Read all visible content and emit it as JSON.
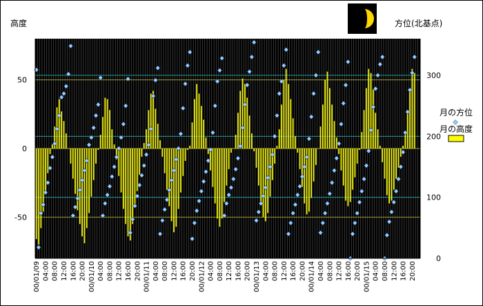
{
  "chart_data": {
    "type": "bar+scatter",
    "y_left_label": "高度",
    "y_right_label": "方位(北基点)",
    "y_left_range": [
      -80,
      80
    ],
    "y_left_ticks": [
      50,
      0,
      -50
    ],
    "y_right_range": [
      0,
      360
    ],
    "y_right_ticks": [
      300,
      200,
      100,
      0
    ],
    "x_tick_labels": [
      "00/01/09",
      "04:00",
      "08:00",
      "12:00",
      "16:00",
      "20:00",
      "00/01/10",
      "04:00",
      "08:00",
      "12:00",
      "16:00",
      "20:00",
      "00/01/11",
      "04:00",
      "08:00",
      "12:00",
      "16:00",
      "20:00",
      "00/01/12",
      "04:00",
      "08:00",
      "12:00",
      "16:00",
      "20:00",
      "00/01/13",
      "04:00",
      "08:00",
      "12:00",
      "16:00",
      "20:00",
      "00/01/14",
      "04:00",
      "08:00",
      "12:00",
      "16:00",
      "20:00",
      "00/01/15",
      "04:00",
      "08:00",
      "12:00",
      "16:00",
      "20:00"
    ],
    "points_per_hour": 1,
    "hours": 168,
    "legend": [
      {
        "name": "月の方位",
        "marker": "diamond",
        "color": "#99ccff"
      },
      {
        "name": "月の高度",
        "marker": "bar",
        "color": "#ffff00"
      }
    ],
    "series": [
      {
        "name": "月の高度",
        "axis": "left",
        "values": [
          -66,
          -70,
          -58,
          -46,
          -32,
          -18,
          -4,
          3,
          16,
          30,
          36,
          27,
          20,
          11,
          0,
          -11,
          -22,
          -33,
          -45,
          -55,
          -64,
          -69,
          -58,
          -47,
          -35,
          -23,
          -11,
          -1,
          10,
          23,
          37,
          36,
          28,
          14,
          3,
          -8,
          -20,
          -32,
          -44,
          -55,
          -64,
          -67,
          -55,
          -43,
          -31,
          -19,
          -6,
          4,
          14,
          28,
          40,
          42,
          29,
          18,
          6,
          -6,
          -18,
          -30,
          -42,
          -53,
          -61,
          -57,
          -44,
          -32,
          -20,
          -9,
          -1,
          2,
          19,
          36,
          47,
          40,
          31,
          21,
          8,
          -4,
          -16,
          -28,
          -40,
          -51,
          -57,
          -51,
          -39,
          -27,
          -15,
          -3,
          0,
          10,
          26,
          42,
          51,
          47,
          37,
          24,
          11,
          -2,
          -14,
          -27,
          -39,
          -50,
          -53,
          -47,
          -35,
          -23,
          -11,
          2,
          14,
          32,
          50,
          58,
          47,
          36,
          22,
          9,
          -3,
          -15,
          -28,
          -40,
          -48,
          -46,
          -36,
          -24,
          -12,
          0,
          16,
          32,
          50,
          56,
          44,
          32,
          20,
          8,
          -4,
          -16,
          -27,
          -38,
          -42,
          -39,
          -30,
          -21,
          -11,
          -1,
          12,
          28,
          44,
          58,
          55,
          43,
          26,
          14,
          2,
          -10,
          -22,
          -34,
          -40,
          -38,
          -30,
          -22,
          -14,
          -6,
          2,
          12,
          28,
          44,
          58,
          55
        ]
      },
      {
        "name": "月の方位",
        "axis": "right",
        "values": [
          309,
          18,
          74,
          88,
          108,
          124,
          148,
          166,
          188,
          212,
          234,
          264,
          270,
          282,
          302,
          348,
          70,
          84,
          98,
          112,
          128,
          144,
          160,
          186,
          198,
          214,
          234,
          252,
          296,
          70,
          90,
          104,
          118,
          134,
          150,
          166,
          180,
          198,
          220,
          250,
          294,
          42,
          64,
          86,
          102,
          120,
          136,
          152,
          170,
          186,
          212,
          266,
          292,
          312,
          40,
          62,
          80,
          96,
          112,
          128,
          144,
          162,
          180,
          204,
          246,
          286,
          316,
          338,
          32,
          58,
          78,
          94,
          110,
          126,
          142,
          160,
          178,
          206,
          250,
          290,
          308,
          328,
          70,
          90,
          104,
          116,
          130,
          146,
          164,
          184,
          214,
          252,
          284,
          306,
          330,
          354,
          62,
          76,
          90,
          102,
          116,
          132,
          150,
          170,
          200,
          234,
          270,
          290,
          316,
          342,
          40,
          58,
          74,
          88,
          104,
          118,
          134,
          150,
          166,
          196,
          232,
          270,
          300,
          338,
          42,
          58,
          74,
          90,
          106,
          124,
          144,
          164,
          188,
          220,
          254,
          284,
          322,
          0,
          40,
          58,
          74,
          92,
          110,
          130,
          152,
          176,
          210,
          248,
          278,
          300,
          318,
          330,
          0,
          38,
          60,
          76,
          92,
          110,
          130,
          150,
          174,
          206,
          240,
          276,
          304,
          330
        ]
      }
    ]
  },
  "icons": {
    "moon_phase": "moon-phase-icon"
  }
}
